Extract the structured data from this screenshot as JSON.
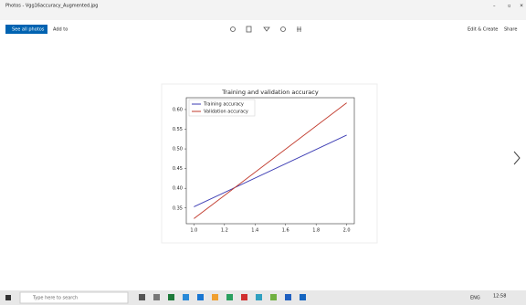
{
  "window": {
    "title": "Photos - Vgg16accuracy_Augmented.jpg"
  },
  "toolbar": {
    "see_all": "See all photos",
    "add_to": "Add to",
    "edit": "Edit & Create",
    "share": "Share"
  },
  "taskbar": {
    "search": "Type here to search",
    "lang": "ENG",
    "time": "12:58"
  },
  "chart_data": {
    "type": "line",
    "title": "Training and validation accuracy",
    "x": [
      1.0,
      2.0
    ],
    "series": [
      {
        "name": "Training accuracy",
        "color": "#3b3bb3",
        "values": [
          0.353,
          0.535
        ]
      },
      {
        "name": "Validation accuracy",
        "color": "#c0392b",
        "values": [
          0.323,
          0.617
        ]
      }
    ],
    "xlim": [
      0.95,
      2.05
    ],
    "xticks": [
      {
        "value": 1.0,
        "label": "1.0"
      },
      1.2,
      1.4,
      1.6,
      1.8,
      {
        "value": 2.0,
        "label": "2.0"
      }
    ],
    "ylim": [
      0.31,
      0.63
    ],
    "yticks": [
      0.35,
      {
        "value": 0.4,
        "label": "0.40"
      },
      0.45,
      {
        "value": 0.5,
        "label": "0.50"
      },
      0.55,
      {
        "value": 0.6,
        "label": "0.60"
      }
    ],
    "legend": "upper left"
  }
}
